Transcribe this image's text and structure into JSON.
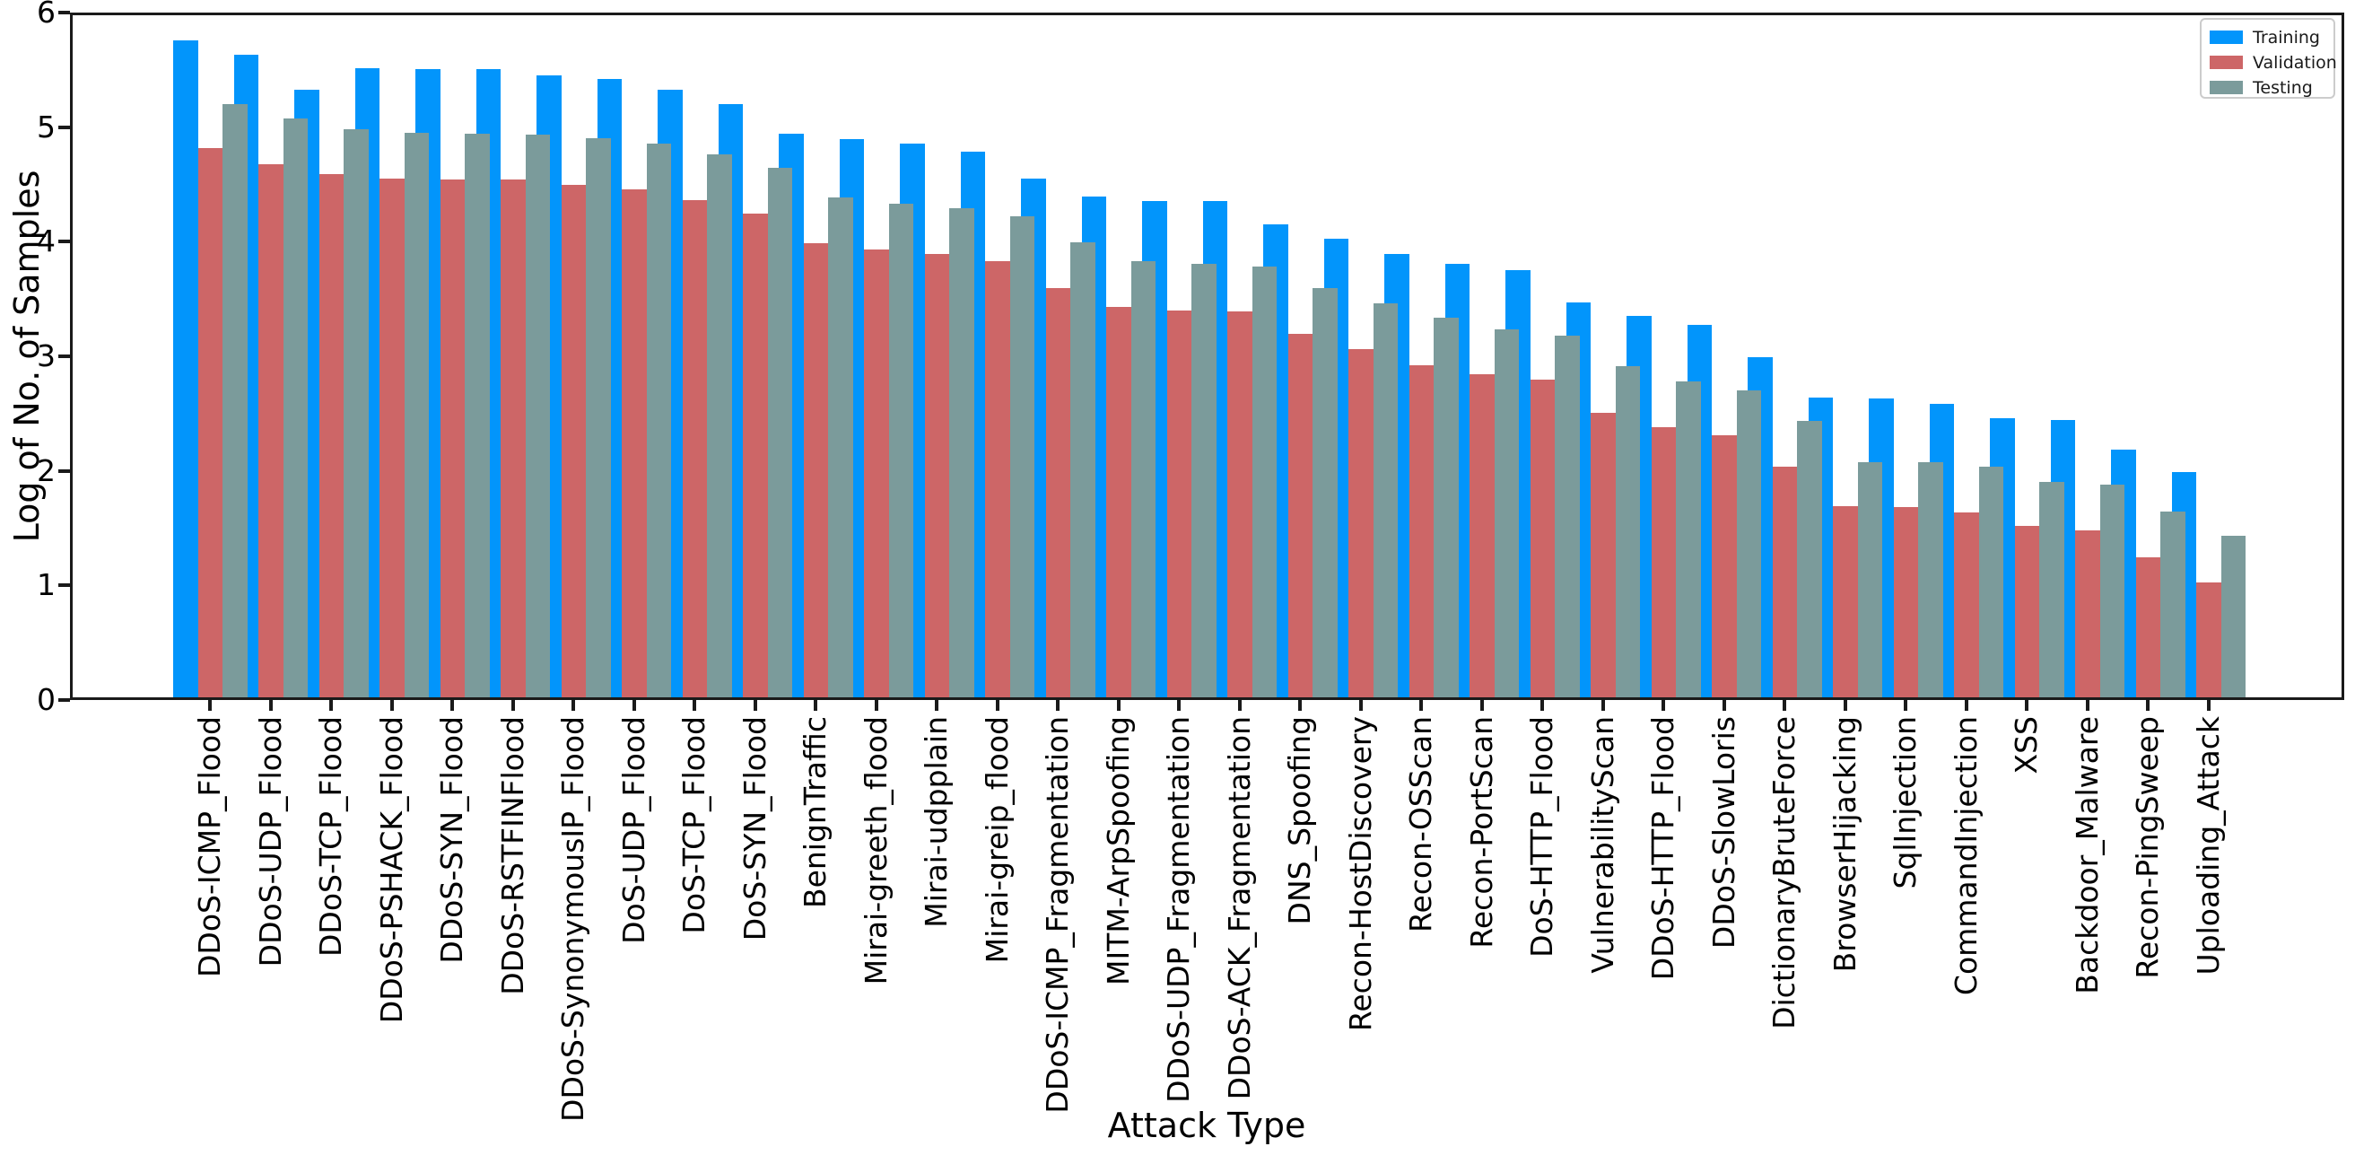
{
  "figure": {
    "background_color": "#ffffff",
    "axis_color": "#1a1a1a"
  },
  "chart_data": {
    "type": "bar",
    "title": "",
    "xlabel": "Attack Type",
    "ylabel": "Log of No. of Samples",
    "ylim": [
      0,
      6
    ],
    "yticks": [
      0,
      1,
      2,
      3,
      4,
      5,
      6
    ],
    "grid": false,
    "legend_position": "upper right",
    "categories": [
      "DDoS-ICMP_Flood",
      "DDoS-UDP_Flood",
      "DDoS-TCP_Flood",
      "DDoS-PSHACK_Flood",
      "DDoS-SYN_Flood",
      "DDoS-RSTFINFlood",
      "DDoS-SynonymousIP_Flood",
      "DoS-UDP_Flood",
      "DoS-TCP_Flood",
      "DoS-SYN_Flood",
      "BenignTraffic",
      "Mirai-greeth_flood",
      "Mirai-udpplain",
      "Mirai-greip_flood",
      "DDoS-ICMP_Fragmentation",
      "MITM-ArpSpoofing",
      "DDoS-UDP_Fragmentation",
      "DDoS-ACK_Fragmentation",
      "DNS_Spoofing",
      "Recon-HostDiscovery",
      "Recon-OSScan",
      "Recon-PortScan",
      "DoS-HTTP_Flood",
      "VulnerabilityScan",
      "DDoS-HTTP_Flood",
      "DDoS-SlowLoris",
      "DictionaryBruteForce",
      "BrowserHijacking",
      "SqlInjection",
      "CommandInjection",
      "XSS",
      "Backdoor_Malware",
      "Recon-PingSweep",
      "Uploading_Attack"
    ],
    "series": [
      {
        "name": "Training",
        "color": "#0295fb",
        "values": [
          5.73,
          5.61,
          5.3,
          5.49,
          5.48,
          5.48,
          5.43,
          5.4,
          5.3,
          5.18,
          4.92,
          4.87,
          4.83,
          4.76,
          4.53,
          4.37,
          4.33,
          4.33,
          4.13,
          4.0,
          3.87,
          3.78,
          3.73,
          3.45,
          3.33,
          3.25,
          2.97,
          2.62,
          2.61,
          2.56,
          2.44,
          2.42,
          2.16,
          1.97
        ]
      },
      {
        "name": "Validation",
        "color": "#cd6667",
        "values": [
          4.79,
          4.65,
          4.57,
          4.53,
          4.52,
          4.52,
          4.47,
          4.43,
          4.34,
          4.22,
          3.96,
          3.91,
          3.87,
          3.81,
          3.57,
          3.41,
          3.38,
          3.37,
          3.17,
          3.04,
          2.9,
          2.82,
          2.77,
          2.48,
          2.36,
          2.29,
          2.01,
          1.67,
          1.66,
          1.61,
          1.5,
          1.46,
          1.22,
          1.0
        ]
      },
      {
        "name": "Testing",
        "color": "#7b9b9b",
        "values": [
          5.18,
          5.05,
          4.96,
          4.93,
          4.92,
          4.91,
          4.88,
          4.83,
          4.74,
          4.62,
          4.36,
          4.31,
          4.27,
          4.2,
          3.97,
          3.81,
          3.78,
          3.76,
          3.57,
          3.44,
          3.31,
          3.21,
          3.16,
          2.89,
          2.76,
          2.68,
          2.41,
          2.05,
          2.05,
          2.01,
          1.88,
          1.86,
          1.62,
          1.41
        ]
      }
    ]
  }
}
